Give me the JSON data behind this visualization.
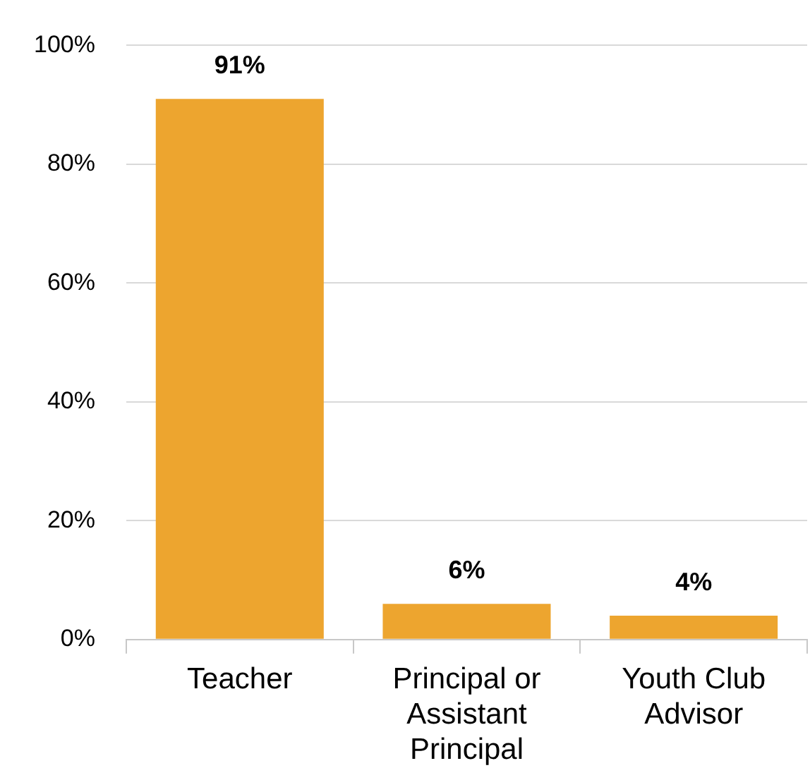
{
  "chart_data": {
    "type": "bar",
    "categories": [
      "Teacher",
      "Principal or Assistant Principal",
      "Youth Club Advisor"
    ],
    "values": [
      91,
      6,
      4
    ],
    "color": "#eda52f",
    "value_labels": [
      "91%",
      "6%",
      "4%"
    ],
    "ylim": [
      0,
      100
    ],
    "yticks": [
      {
        "value": 0,
        "label": "0%"
      },
      {
        "value": 20,
        "label": "20%"
      },
      {
        "value": 40,
        "label": "40%"
      },
      {
        "value": 60,
        "label": "60%"
      },
      {
        "value": 80,
        "label": "80%"
      },
      {
        "value": 100,
        "label": "100%"
      }
    ],
    "grid": "y",
    "legend": false
  }
}
